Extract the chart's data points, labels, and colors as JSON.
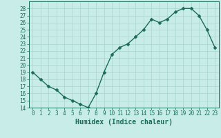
{
  "x": [
    0,
    1,
    2,
    3,
    4,
    5,
    6,
    7,
    8,
    9,
    10,
    11,
    12,
    13,
    14,
    15,
    16,
    17,
    18,
    19,
    20,
    21,
    22,
    23
  ],
  "y": [
    19,
    18,
    17,
    16.5,
    15.5,
    15,
    14.5,
    14,
    16,
    19,
    21.5,
    22.5,
    23,
    24,
    25,
    26.5,
    26,
    26.5,
    27.5,
    28,
    28,
    27,
    25,
    22.5
  ],
  "line_color": "#1a6b5a",
  "marker_color": "#1a6b5a",
  "bg_color": "#c8ece8",
  "grid_color": "#aad4ce",
  "axis_color": "#1a6b5a",
  "xlabel": "Humidex (Indice chaleur)",
  "ylim": [
    14,
    29
  ],
  "xlim": [
    -0.5,
    23.5
  ],
  "yticks": [
    14,
    15,
    16,
    17,
    18,
    19,
    20,
    21,
    22,
    23,
    24,
    25,
    26,
    27,
    28
  ],
  "xticks": [
    0,
    1,
    2,
    3,
    4,
    5,
    6,
    7,
    8,
    9,
    10,
    11,
    12,
    13,
    14,
    15,
    16,
    17,
    18,
    19,
    20,
    21,
    22,
    23
  ],
  "xlabel_fontsize": 7,
  "tick_fontsize": 5.5,
  "line_width": 1.0,
  "marker_size": 2.5
}
